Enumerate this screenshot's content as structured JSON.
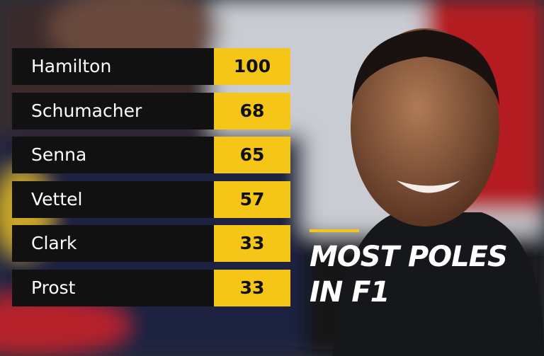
{
  "table": {
    "rows": [
      [
        "Hamilton",
        100
      ],
      [
        "Schumacher",
        68
      ],
      [
        "Senna",
        65
      ],
      [
        "Vettel",
        57
      ],
      [
        "Clark",
        33
      ],
      [
        "Prost",
        33
      ]
    ]
  },
  "title": {
    "lines": [
      "MOST POLES",
      "IN F1"
    ]
  }
}
